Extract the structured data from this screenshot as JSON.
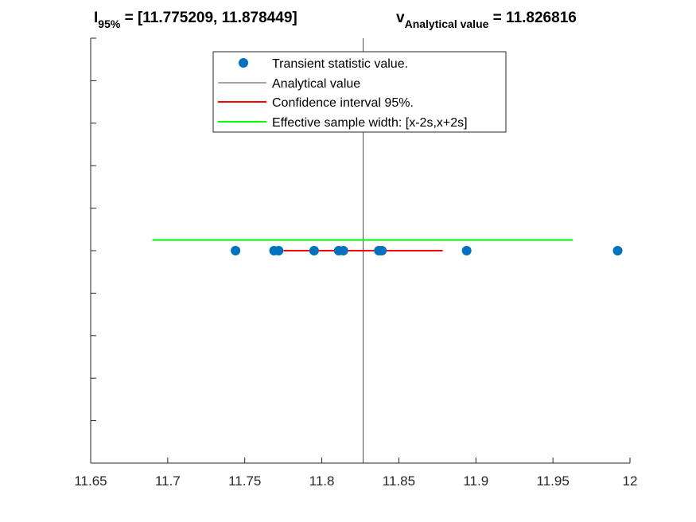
{
  "chart_data": {
    "type": "scatter",
    "title_left": {
      "main": "I",
      "sub": "95%",
      "rest": " = [11.775209, 11.878449]"
    },
    "title_right": {
      "main": "v",
      "sub": "Analytical value",
      "rest": " = 11.826816"
    },
    "xlabel": "",
    "ylabel": "",
    "xlim": [
      11.65,
      12.0
    ],
    "ylim": [
      0,
      10
    ],
    "x_tick_labels": [
      "11.65",
      "11.7",
      "11.75",
      "11.8",
      "11.85",
      "11.9",
      "11.95",
      "12"
    ],
    "y_ticks": [
      1,
      2,
      3,
      4,
      5,
      6,
      7,
      8,
      9,
      10
    ],
    "legend": {
      "position": "top",
      "entries": [
        "Transient statistic value.",
        "Analytical value",
        "Confidence interval 95%.",
        "Effective sample width: [x-2s,x+2s]"
      ]
    },
    "series": [
      {
        "name": "Transient statistic value.",
        "type": "scatter",
        "color": "#0072BD",
        "points": [
          {
            "x": 11.744,
            "y": 5
          },
          {
            "x": 11.769,
            "y": 5
          },
          {
            "x": 11.772,
            "y": 5
          },
          {
            "x": 11.795,
            "y": 5
          },
          {
            "x": 11.811,
            "y": 5
          },
          {
            "x": 11.814,
            "y": 5
          },
          {
            "x": 11.837,
            "y": 5
          },
          {
            "x": 11.839,
            "y": 5
          },
          {
            "x": 11.894,
            "y": 5
          },
          {
            "x": 11.992,
            "y": 5
          }
        ]
      },
      {
        "name": "Analytical value",
        "type": "vline",
        "color": "#4d4d4d",
        "x": 11.826816
      },
      {
        "name": "Confidence interval 95%.",
        "type": "hline",
        "color": "#ff0000",
        "x_range": [
          11.775209,
          11.878449
        ],
        "y": 5
      },
      {
        "name": "Effective sample width: [x-2s,x+2s]",
        "type": "hline",
        "color": "#00ff00",
        "x_range": [
          11.69,
          11.963
        ],
        "y": 5.25
      }
    ]
  }
}
